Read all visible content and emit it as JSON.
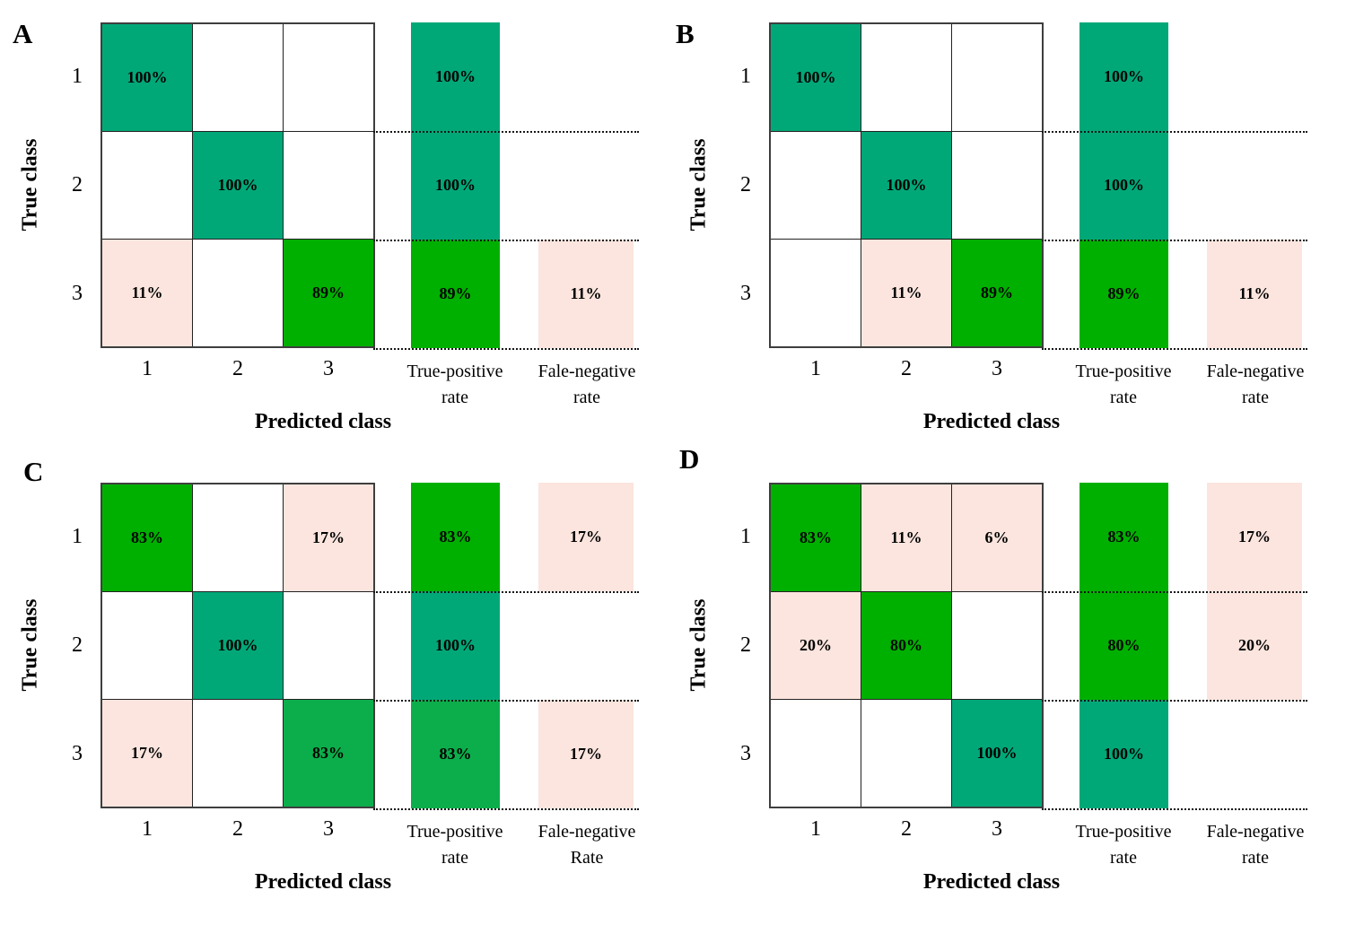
{
  "palette": {
    "teal_green_100": "#00A878",
    "bright_green": "#00B000",
    "medium_green": "#0CAE4B",
    "light_pink": "#FBE5DE",
    "grid_line": "#222222",
    "white": "#FFFFFF"
  },
  "panels": [
    {
      "letter": "A",
      "y_axis_label": "True class",
      "x_axis_label": "Predicted class",
      "row_labels": [
        "1",
        "2",
        "3"
      ],
      "col_labels": [
        "1",
        "2",
        "3"
      ],
      "tp_header_line1": "True-positive",
      "tp_header_line2": "rate",
      "fn_header_line1": "Fale-negative",
      "fn_header_line2": "rate",
      "cells": [
        [
          {
            "label": "100%",
            "color": "#00A878"
          },
          {
            "label": "",
            "color": "#FFFFFF"
          },
          {
            "label": "",
            "color": "#FFFFFF"
          }
        ],
        [
          {
            "label": "",
            "color": "#FFFFFF"
          },
          {
            "label": "100%",
            "color": "#00A878"
          },
          {
            "label": "",
            "color": "#FFFFFF"
          }
        ],
        [
          {
            "label": "11%",
            "color": "#FBE5DE"
          },
          {
            "label": "",
            "color": "#FFFFFF"
          },
          {
            "label": "89%",
            "color": "#00B000"
          }
        ]
      ],
      "tp_col": [
        {
          "label": "100%",
          "color": "#00A878"
        },
        {
          "label": "100%",
          "color": "#00A878"
        },
        {
          "label": "89%",
          "color": "#00B000"
        }
      ],
      "fn_col": [
        {
          "label": "",
          "color": ""
        },
        {
          "label": "",
          "color": ""
        },
        {
          "label": "11%",
          "color": "#FBE5DE"
        }
      ]
    },
    {
      "letter": "B",
      "y_axis_label": "True class",
      "x_axis_label": "Predicted class",
      "row_labels": [
        "1",
        "2",
        "3"
      ],
      "col_labels": [
        "1",
        "2",
        "3"
      ],
      "tp_header_line1": "True-positive",
      "tp_header_line2": "rate",
      "fn_header_line1": "Fale-negative",
      "fn_header_line2": "rate",
      "cells": [
        [
          {
            "label": "100%",
            "color": "#00A878"
          },
          {
            "label": "",
            "color": "#FFFFFF"
          },
          {
            "label": "",
            "color": "#FFFFFF"
          }
        ],
        [
          {
            "label": "",
            "color": "#FFFFFF"
          },
          {
            "label": "100%",
            "color": "#00A878"
          },
          {
            "label": "",
            "color": "#FFFFFF"
          }
        ],
        [
          {
            "label": "",
            "color": "#FFFFFF"
          },
          {
            "label": "11%",
            "color": "#FBE5DE"
          },
          {
            "label": "89%",
            "color": "#00B000"
          }
        ]
      ],
      "tp_col": [
        {
          "label": "100%",
          "color": "#00A878"
        },
        {
          "label": "100%",
          "color": "#00A878"
        },
        {
          "label": "89%",
          "color": "#00B000"
        }
      ],
      "fn_col": [
        {
          "label": "",
          "color": ""
        },
        {
          "label": "",
          "color": ""
        },
        {
          "label": "11%",
          "color": "#FBE5DE"
        }
      ]
    },
    {
      "letter": "C",
      "y_axis_label": "True class",
      "x_axis_label": "Predicted class",
      "row_labels": [
        "1",
        "2",
        "3"
      ],
      "col_labels": [
        "1",
        "2",
        "3"
      ],
      "tp_header_line1": "True-positive",
      "tp_header_line2": "rate",
      "fn_header_line1": "Fale-negative",
      "fn_header_line2": "Rate",
      "cells": [
        [
          {
            "label": "83%",
            "color": "#00B000"
          },
          {
            "label": "",
            "color": "#FFFFFF"
          },
          {
            "label": "17%",
            "color": "#FBE5DE"
          }
        ],
        [
          {
            "label": "",
            "color": "#FFFFFF"
          },
          {
            "label": "100%",
            "color": "#00A878"
          },
          {
            "label": "",
            "color": "#FFFFFF"
          }
        ],
        [
          {
            "label": "17%",
            "color": "#FBE5DE"
          },
          {
            "label": "",
            "color": "#FFFFFF"
          },
          {
            "label": "83%",
            "color": "#0CAE4B"
          }
        ]
      ],
      "tp_col": [
        {
          "label": "83%",
          "color": "#00B000"
        },
        {
          "label": "100%",
          "color": "#00A878"
        },
        {
          "label": "83%",
          "color": "#0CAE4B"
        }
      ],
      "fn_col": [
        {
          "label": "17%",
          "color": "#FBE5DE"
        },
        {
          "label": "",
          "color": ""
        },
        {
          "label": "17%",
          "color": "#FBE5DE"
        }
      ]
    },
    {
      "letter": "D",
      "y_axis_label": "True class",
      "x_axis_label": "Predicted class",
      "row_labels": [
        "1",
        "2",
        "3"
      ],
      "col_labels": [
        "1",
        "2",
        "3"
      ],
      "tp_header_line1": "True-positive",
      "tp_header_line2": "rate",
      "fn_header_line1": "Fale-negative",
      "fn_header_line2": "rate",
      "cells": [
        [
          {
            "label": "83%",
            "color": "#00B000"
          },
          {
            "label": "11%",
            "color": "#FBE5DE"
          },
          {
            "label": "6%",
            "color": "#FBE5DE"
          }
        ],
        [
          {
            "label": "20%",
            "color": "#FBE5DE"
          },
          {
            "label": "80%",
            "color": "#00B000"
          },
          {
            "label": "",
            "color": "#FFFFFF"
          }
        ],
        [
          {
            "label": "",
            "color": "#FFFFFF"
          },
          {
            "label": "",
            "color": "#FFFFFF"
          },
          {
            "label": "100%",
            "color": "#00A878"
          }
        ]
      ],
      "tp_col": [
        {
          "label": "83%",
          "color": "#00B000"
        },
        {
          "label": "80%",
          "color": "#00B000"
        },
        {
          "label": "100%",
          "color": "#00A878"
        }
      ],
      "fn_col": [
        {
          "label": "17%",
          "color": "#FBE5DE"
        },
        {
          "label": "20%",
          "color": "#FBE5DE"
        },
        {
          "label": "",
          "color": ""
        }
      ]
    }
  ],
  "chart_data": [
    {
      "type": "heatmap",
      "title": "A",
      "xlabel": "Predicted class",
      "ylabel": "True class",
      "x_categories": [
        "1",
        "2",
        "3",
        "True-positive rate",
        "Fale-negative rate"
      ],
      "y_categories": [
        "1",
        "2",
        "3"
      ],
      "matrix_percent": [
        [
          100,
          null,
          null
        ],
        [
          null,
          100,
          null
        ],
        [
          11,
          null,
          89
        ]
      ],
      "true_positive_rate_percent": [
        100,
        100,
        89
      ],
      "false_negative_rate_percent": [
        null,
        null,
        11
      ]
    },
    {
      "type": "heatmap",
      "title": "B",
      "xlabel": "Predicted class",
      "ylabel": "True class",
      "x_categories": [
        "1",
        "2",
        "3",
        "True-positive rate",
        "Fale-negative rate"
      ],
      "y_categories": [
        "1",
        "2",
        "3"
      ],
      "matrix_percent": [
        [
          100,
          null,
          null
        ],
        [
          null,
          100,
          null
        ],
        [
          null,
          11,
          89
        ]
      ],
      "true_positive_rate_percent": [
        100,
        100,
        89
      ],
      "false_negative_rate_percent": [
        null,
        null,
        11
      ]
    },
    {
      "type": "heatmap",
      "title": "C",
      "xlabel": "Predicted class",
      "ylabel": "True class",
      "x_categories": [
        "1",
        "2",
        "3",
        "True-positive rate",
        "Fale-negative Rate"
      ],
      "y_categories": [
        "1",
        "2",
        "3"
      ],
      "matrix_percent": [
        [
          83,
          null,
          17
        ],
        [
          null,
          100,
          null
        ],
        [
          17,
          null,
          83
        ]
      ],
      "true_positive_rate_percent": [
        83,
        100,
        83
      ],
      "false_negative_rate_percent": [
        17,
        null,
        17
      ]
    },
    {
      "type": "heatmap",
      "title": "D",
      "xlabel": "Predicted class",
      "ylabel": "True class",
      "x_categories": [
        "1",
        "2",
        "3",
        "True-positive rate",
        "Fale-negative rate"
      ],
      "y_categories": [
        "1",
        "2",
        "3"
      ],
      "matrix_percent": [
        [
          83,
          11,
          6
        ],
        [
          20,
          80,
          null
        ],
        [
          null,
          null,
          100
        ]
      ],
      "true_positive_rate_percent": [
        83,
        80,
        100
      ],
      "false_negative_rate_percent": [
        17,
        20,
        null
      ]
    }
  ]
}
